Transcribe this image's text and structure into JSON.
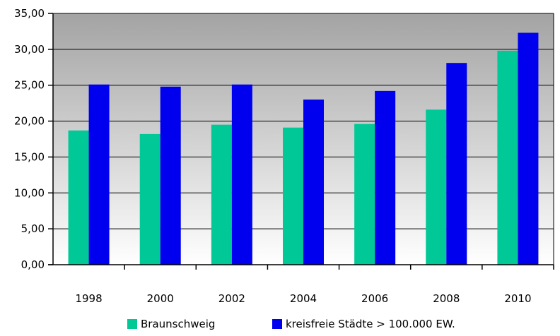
{
  "chart_data": {
    "type": "bar",
    "title": "",
    "xlabel": "",
    "ylabel": "",
    "categories": [
      "1998",
      "2000",
      "2002",
      "2004",
      "2006",
      "2008",
      "2010"
    ],
    "series": [
      {
        "name": "Braunschweig",
        "color": "#00c896",
        "values": [
          18.7,
          18.2,
          19.5,
          19.1,
          19.6,
          21.6,
          29.8
        ]
      },
      {
        "name": "kreisfreie Städte > 100.000 EW.",
        "color": "#0000ee",
        "values": [
          25.1,
          24.8,
          25.1,
          23.0,
          24.2,
          28.1,
          32.3
        ]
      }
    ],
    "ylim": [
      0,
      35
    ],
    "yticks": [
      0,
      5,
      10,
      15,
      20,
      25,
      30,
      35
    ],
    "ytick_labels": [
      "0,00",
      "5,00",
      "10,00",
      "15,00",
      "20,00",
      "25,00",
      "30,00",
      "35,00"
    ],
    "grid": true,
    "legend_position": "bottom",
    "background_gradient": [
      "#a3a3a3",
      "#ffffff"
    ]
  }
}
